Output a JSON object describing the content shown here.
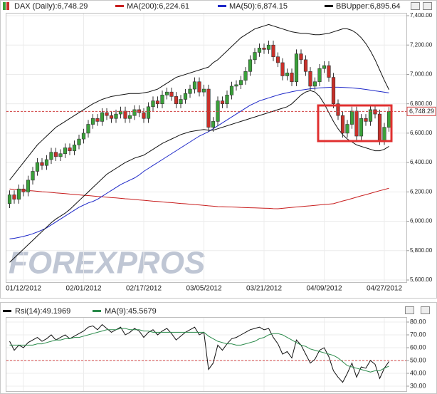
{
  "chart_data": [
    {
      "type": "candlestick",
      "watermark": "FOREXPROS",
      "categories": [
        null,
        null,
        null,
        "01/12/2012",
        null,
        null,
        null,
        null,
        null,
        null,
        null,
        null,
        null,
        null,
        null,
        null,
        "02/01/2012",
        null,
        null,
        null,
        null,
        null,
        null,
        null,
        null,
        null,
        null,
        null,
        null,
        "02/17/2012",
        null,
        null,
        null,
        null,
        null,
        null,
        null,
        null,
        null,
        null,
        null,
        null,
        "03/05/2012",
        null,
        null,
        null,
        null,
        null,
        null,
        null,
        null,
        null,
        null,
        null,
        null,
        "03/21/2012",
        null,
        null,
        null,
        null,
        null,
        null,
        null,
        null,
        null,
        null,
        null,
        null,
        "04/09/2012",
        null,
        null,
        null,
        null,
        null,
        null,
        null,
        null,
        null,
        null,
        null,
        null,
        "04/27/2012",
        null
      ],
      "ylim": [
        5600,
        7400
      ],
      "yticks": [
        {
          "value": 5600,
          "label": "5,600.00"
        },
        {
          "value": 5800,
          "label": "5,800.00"
        },
        {
          "value": 6000,
          "label": "6,000.00"
        },
        {
          "value": 6200,
          "label": "6,200.00"
        },
        {
          "value": 6400,
          "label": "6,400.00"
        },
        {
          "value": 6600,
          "label": "6,600.00"
        },
        {
          "value": 6800,
          "label": "6,800.00"
        },
        {
          "value": 7000,
          "label": "7,000.00"
        },
        {
          "value": 7200,
          "label": "7,200.00"
        },
        {
          "value": 7400,
          "label": "7,400.00"
        }
      ],
      "grid": true,
      "last_price": {
        "value": 6748.29,
        "label": "6,748.29"
      },
      "series": [
        {
          "name": "DAX (Daily):6,748.29",
          "up_color": "#3aa03a",
          "down_color": "#c8302a",
          "open": [
            6120,
            6180,
            6150,
            6220,
            6200,
            6280,
            6340,
            6400,
            6380,
            6420,
            6470,
            6440,
            6460,
            6500,
            6480,
            6520,
            6560,
            6600,
            6660,
            6700,
            6680,
            6740,
            6720,
            6700,
            6730,
            6750,
            6700,
            6720,
            6760,
            6740,
            6700,
            6780,
            6820,
            6800,
            6860,
            6880,
            6850,
            6800,
            6830,
            6870,
            6900,
            6950,
            6880,
            6900,
            6640,
            6680,
            6820,
            6800,
            6860,
            6920,
            6930,
            6960,
            7020,
            7100,
            7150,
            7180,
            7170,
            7200,
            7120,
            7080,
            6990,
            7010,
            6950,
            7140,
            7100,
            7020,
            6920,
            6950,
            7040,
            7060,
            6980,
            6800,
            6720,
            6600,
            6660,
            6750,
            6580,
            6700,
            6680,
            6760,
            6730,
            6550,
            6640
          ],
          "high": [
            6210,
            6210,
            6250,
            6250,
            6310,
            6370,
            6430,
            6430,
            6450,
            6500,
            6500,
            6490,
            6530,
            6530,
            6550,
            6590,
            6630,
            6690,
            6730,
            6730,
            6770,
            6770,
            6750,
            6760,
            6780,
            6780,
            6750,
            6790,
            6790,
            6770,
            6810,
            6850,
            6850,
            6890,
            6910,
            6910,
            6880,
            6860,
            6900,
            6930,
            6980,
            6980,
            6930,
            6930,
            6710,
            6850,
            6850,
            6890,
            6950,
            6960,
            6990,
            7050,
            7130,
            7180,
            7210,
            7210,
            7230,
            7230,
            7150,
            7110,
            7040,
            7040,
            7170,
            7170,
            7130,
            7050,
            6980,
            7070,
            7090,
            7090,
            7010,
            6830,
            6750,
            6690,
            6780,
            6780,
            6730,
            6730,
            6790,
            6790,
            6760,
            6670,
            6778
          ],
          "low": [
            6090,
            6120,
            6120,
            6170,
            6170,
            6250,
            6310,
            6350,
            6350,
            6390,
            6410,
            6410,
            6430,
            6450,
            6450,
            6490,
            6530,
            6570,
            6630,
            6650,
            6650,
            6690,
            6670,
            6670,
            6700,
            6670,
            6670,
            6690,
            6710,
            6670,
            6670,
            6750,
            6770,
            6770,
            6830,
            6820,
            6770,
            6770,
            6800,
            6840,
            6870,
            6850,
            6850,
            6610,
            6610,
            6650,
            6770,
            6770,
            6830,
            6890,
            6900,
            6930,
            6990,
            7070,
            7120,
            7140,
            7140,
            7090,
            7050,
            6960,
            6960,
            6920,
            6920,
            7070,
            6990,
            6890,
            6890,
            6920,
            7010,
            6950,
            6770,
            6690,
            6570,
            6570,
            6630,
            6550,
            6550,
            6650,
            6650,
            6700,
            6520,
            6520,
            6610
          ],
          "close": [
            6180,
            6150,
            6220,
            6200,
            6280,
            6340,
            6400,
            6380,
            6420,
            6470,
            6440,
            6460,
            6500,
            6480,
            6520,
            6560,
            6600,
            6660,
            6700,
            6680,
            6740,
            6720,
            6700,
            6730,
            6750,
            6700,
            6720,
            6760,
            6740,
            6700,
            6780,
            6820,
            6800,
            6860,
            6880,
            6850,
            6800,
            6830,
            6870,
            6900,
            6950,
            6880,
            6900,
            6640,
            6680,
            6820,
            6800,
            6860,
            6920,
            6930,
            6960,
            7020,
            7100,
            7150,
            7180,
            7170,
            7200,
            7120,
            7080,
            6990,
            7010,
            6950,
            7140,
            7100,
            7020,
            6920,
            6950,
            7040,
            7060,
            6980,
            6800,
            6720,
            6600,
            6660,
            6750,
            6580,
            6700,
            6680,
            6760,
            6730,
            6550,
            6640,
            6748
          ]
        },
        {
          "name": "MA(200):6,224.61",
          "color": "#c81e1e",
          "values": [
            6220,
            6217,
            6215,
            6212,
            6209,
            6207,
            6204,
            6201,
            6199,
            6196,
            6193,
            6191,
            6188,
            6185,
            6183,
            6180,
            6177,
            6175,
            6172,
            6169,
            6167,
            6164,
            6161,
            6159,
            6156,
            6153,
            6151,
            6148,
            6145,
            6143,
            6140,
            6137,
            6135,
            6132,
            6129,
            6127,
            6124,
            6121,
            6119,
            6116,
            6113,
            6111,
            6108,
            6105,
            6103,
            6100,
            6099,
            6098,
            6097,
            6096,
            6094,
            6093,
            6092,
            6091,
            6090,
            6089,
            6088,
            6086,
            6085,
            6088,
            6091,
            6094,
            6097,
            6100,
            6103,
            6105,
            6108,
            6111,
            6114,
            6117,
            6120,
            6129,
            6138,
            6146,
            6155,
            6164,
            6173,
            6181,
            6190,
            6199,
            6208,
            6216,
            6225
          ]
        },
        {
          "name": "MA(50):6,874.15",
          "color": "#1e28c8",
          "values": [
            5880,
            5884,
            5890,
            5897,
            5905,
            5915,
            5927,
            5940,
            5955,
            5975,
            5995,
            6015,
            6035,
            6055,
            6075,
            6095,
            6110,
            6125,
            6135,
            6150,
            6170,
            6190,
            6210,
            6230,
            6250,
            6265,
            6280,
            6295,
            6315,
            6340,
            6360,
            6380,
            6400,
            6420,
            6440,
            6460,
            6480,
            6500,
            6520,
            6540,
            6560,
            6580,
            6595,
            6610,
            6630,
            6650,
            6670,
            6690,
            6710,
            6730,
            6750,
            6770,
            6790,
            6805,
            6820,
            6830,
            6840,
            6850,
            6860,
            6868,
            6875,
            6882,
            6888,
            6893,
            6898,
            6902,
            6905,
            6908,
            6910,
            6912,
            6913,
            6913,
            6912,
            6910,
            6908,
            6905,
            6902,
            6898,
            6893,
            6888,
            6884,
            6879,
            6874
          ]
        },
        {
          "name": "BBUpper:6,895.64",
          "color": "#111111",
          "values": [
            6280,
            6320,
            6360,
            6400,
            6440,
            6480,
            6520,
            6550,
            6580,
            6610,
            6640,
            6660,
            6680,
            6700,
            6720,
            6740,
            6760,
            6780,
            6800,
            6815,
            6830,
            6840,
            6850,
            6855,
            6860,
            6865,
            6870,
            6870,
            6870,
            6875,
            6880,
            6890,
            6900,
            6920,
            6940,
            6960,
            6980,
            6990,
            7000,
            7010,
            7020,
            7030,
            7040,
            7050,
            7080,
            7100,
            7130,
            7160,
            7190,
            7220,
            7250,
            7270,
            7290,
            7310,
            7320,
            7330,
            7340,
            7330,
            7320,
            7310,
            7300,
            7290,
            7285,
            7280,
            7280,
            7275,
            7270,
            7270,
            7275,
            7280,
            7290,
            7300,
            7310,
            7310,
            7300,
            7280,
            7250,
            7210,
            7160,
            7100,
            7030,
            6960,
            6896
          ]
        },
        {
          "color": "#111111",
          "values": [
            5720,
            5750,
            5780,
            5810,
            5840,
            5870,
            5900,
            5930,
            5960,
            5990,
            6015,
            6035,
            6055,
            6080,
            6110,
            6140,
            6170,
            6200,
            6230,
            6260,
            6290,
            6320,
            6340,
            6360,
            6380,
            6400,
            6415,
            6430,
            6440,
            6450,
            6470,
            6490,
            6510,
            6530,
            6545,
            6560,
            6575,
            6590,
            6600,
            6610,
            6615,
            6620,
            6625,
            6620,
            6620,
            6630,
            6640,
            6650,
            6660,
            6670,
            6680,
            6690,
            6700,
            6710,
            6720,
            6730,
            6740,
            6750,
            6760,
            6770,
            6780,
            6800,
            6830,
            6860,
            6880,
            6890,
            6880,
            6850,
            6800,
            6740,
            6680,
            6630,
            6590,
            6560,
            6540,
            6520,
            6510,
            6500,
            6490,
            6480,
            6480,
            6490,
            6510
          ]
        }
      ]
    },
    {
      "type": "line",
      "ylim": [
        30,
        80
      ],
      "yticks": [
        {
          "value": 30,
          "label": "30.00"
        },
        {
          "value": 40,
          "label": "40.00"
        },
        {
          "value": 50,
          "label": "50.00"
        },
        {
          "value": 60,
          "label": "60.00"
        },
        {
          "value": 70,
          "label": "70.00"
        },
        {
          "value": 80,
          "label": "80.00"
        }
      ],
      "grid": true,
      "reference_line": 50,
      "series": [
        {
          "name": "Rsi(14):49.1969",
          "color": "#111111",
          "values": [
            65,
            58,
            62,
            60,
            64,
            66,
            68,
            65,
            67,
            70,
            66,
            68,
            70,
            67,
            69,
            71,
            73,
            76,
            77,
            74,
            78,
            75,
            72,
            74,
            76,
            70,
            72,
            75,
            73,
            68,
            72,
            74,
            70,
            73,
            75,
            71,
            66,
            69,
            72,
            74,
            76,
            70,
            72,
            43,
            48,
            62,
            58,
            63,
            67,
            68,
            70,
            72,
            74,
            75,
            76,
            74,
            75,
            68,
            63,
            55,
            57,
            52,
            66,
            62,
            55,
            48,
            51,
            58,
            60,
            53,
            42,
            37,
            33,
            40,
            48,
            37,
            45,
            44,
            50,
            47,
            36,
            44,
            49.2
          ]
        },
        {
          "name": "MA(9):45.5679",
          "color": "#2a8a4a",
          "values": [
            62,
            62,
            62,
            62,
            62,
            62,
            63,
            63,
            64,
            65,
            66,
            66,
            67,
            67,
            68,
            68,
            69,
            70,
            71,
            72,
            73,
            74,
            74,
            74,
            75,
            75,
            74,
            74,
            74,
            73,
            73,
            72,
            72,
            72,
            72,
            72,
            72,
            72,
            72,
            72,
            72,
            72,
            72,
            69,
            67,
            65,
            64,
            63,
            63,
            62,
            62,
            63,
            64,
            65,
            67,
            68,
            70,
            71,
            71,
            70,
            68,
            66,
            64,
            62,
            61,
            59,
            58,
            57,
            56,
            55,
            54,
            52,
            49,
            46,
            45,
            44,
            43,
            42,
            41,
            42,
            42,
            44,
            45.6
          ]
        }
      ]
    }
  ]
}
